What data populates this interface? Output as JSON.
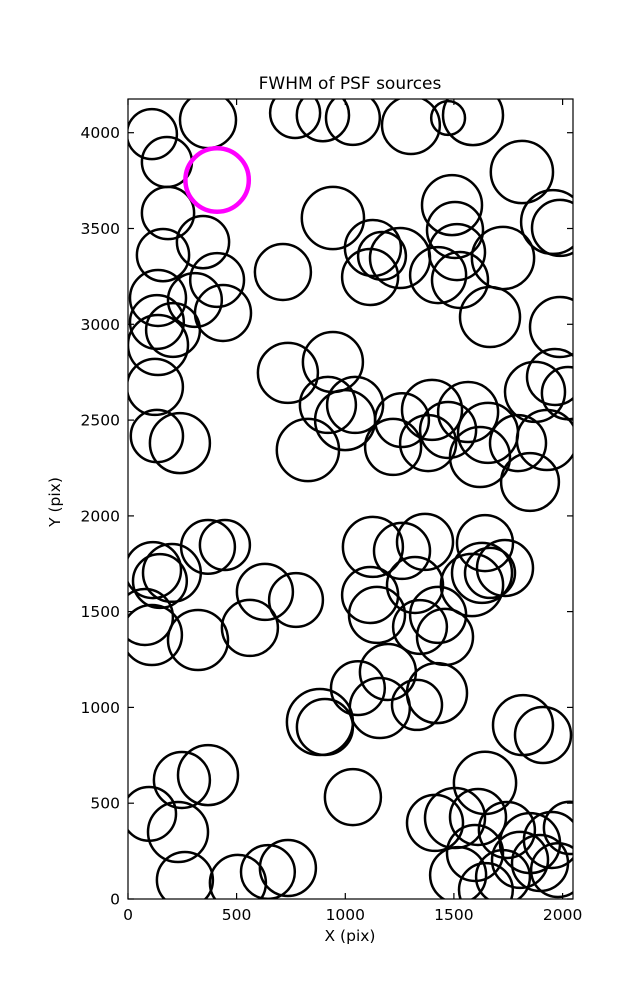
{
  "title": "FWHM of PSF sources",
  "chart_data": {
    "type": "scatter",
    "title": "FWHM of PSF sources",
    "xlabel": "X (pix)",
    "ylabel": "Y (pix)",
    "xlim": [
      0,
      2048
    ],
    "ylim": [
      0,
      4176
    ],
    "xticks": [
      0,
      500,
      1000,
      1500,
      2000
    ],
    "yticks": [
      0,
      500,
      1000,
      1500,
      2000,
      2500,
      3000,
      3500,
      4000
    ],
    "grid": false,
    "legend": "none",
    "marker": "open-circle",
    "colors": {
      "circle": "#000000",
      "highlight": "#ff00ff",
      "frame": "#000000"
    },
    "highlight_circle": [
      410,
      3753,
      146
    ],
    "circles": [
      [
        110,
        3993,
        115
      ],
      [
        368,
        4066,
        129
      ],
      [
        769,
        4103,
        115
      ],
      [
        897,
        4092,
        120
      ],
      [
        1035,
        4077,
        124
      ],
      [
        1302,
        4040,
        133
      ],
      [
        1473,
        4077,
        78
      ],
      [
        1588,
        4092,
        138
      ],
      [
        179,
        3847,
        115
      ],
      [
        1813,
        3795,
        143
      ],
      [
        184,
        3581,
        120
      ],
      [
        943,
        3555,
        143
      ],
      [
        1491,
        3622,
        138
      ],
      [
        1956,
        3534,
        147
      ],
      [
        1988,
        3503,
        129
      ],
      [
        161,
        3361,
        120
      ],
      [
        345,
        3429,
        120
      ],
      [
        410,
        3231,
        124
      ],
      [
        308,
        3127,
        124
      ],
      [
        138,
        3137,
        129
      ],
      [
        437,
        3059,
        129
      ],
      [
        1505,
        3492,
        129
      ],
      [
        1514,
        3377,
        129
      ],
      [
        1427,
        3257,
        129
      ],
      [
        1528,
        3231,
        129
      ],
      [
        1726,
        3346,
        143
      ],
      [
        1127,
        3398,
        129
      ],
      [
        1252,
        3346,
        138
      ],
      [
        1169,
        3357,
        110
      ],
      [
        1114,
        3247,
        129
      ],
      [
        713,
        3273,
        129
      ],
      [
        1666,
        3038,
        138
      ],
      [
        133,
        3012,
        124
      ],
      [
        207,
        2970,
        124
      ],
      [
        138,
        2892,
        138
      ],
      [
        124,
        2673,
        129
      ],
      [
        1988,
        2986,
        138
      ],
      [
        1965,
        2725,
        129
      ],
      [
        1873,
        2647,
        138
      ],
      [
        2025,
        2641,
        120
      ],
      [
        943,
        2803,
        138
      ],
      [
        736,
        2746,
        138
      ],
      [
        920,
        2579,
        129
      ],
      [
        1045,
        2579,
        129
      ],
      [
        999,
        2500,
        138
      ],
      [
        1261,
        2500,
        124
      ],
      [
        133,
        2417,
        120
      ],
      [
        239,
        2380,
        138
      ],
      [
        828,
        2344,
        143
      ],
      [
        1220,
        2360,
        129
      ],
      [
        1399,
        2553,
        138
      ],
      [
        1565,
        2542,
        138
      ],
      [
        1473,
        2448,
        129
      ],
      [
        1657,
        2433,
        138
      ],
      [
        1381,
        2380,
        129
      ],
      [
        1620,
        2307,
        138
      ],
      [
        1795,
        2380,
        129
      ],
      [
        1928,
        2396,
        138
      ],
      [
        1850,
        2177,
        133
      ],
      [
        368,
        1838,
        124
      ],
      [
        446,
        1848,
        115
      ],
      [
        115,
        1717,
        129
      ],
      [
        147,
        1660,
        124
      ],
      [
        202,
        1702,
        133
      ],
      [
        630,
        1603,
        129
      ],
      [
        773,
        1561,
        124
      ],
      [
        1127,
        1838,
        138
      ],
      [
        1261,
        1817,
        129
      ],
      [
        1367,
        1864,
        129
      ],
      [
        1114,
        1587,
        129
      ],
      [
        1321,
        1639,
        129
      ],
      [
        1643,
        1858,
        129
      ],
      [
        1629,
        1702,
        138
      ],
      [
        1666,
        1702,
        115
      ],
      [
        1735,
        1728,
        129
      ],
      [
        1583,
        1639,
        143
      ],
      [
        78,
        1472,
        129
      ],
      [
        110,
        1378,
        138
      ],
      [
        322,
        1352,
        138
      ],
      [
        561,
        1415,
        129
      ],
      [
        1146,
        1483,
        129
      ],
      [
        1344,
        1420,
        124
      ],
      [
        1427,
        1483,
        129
      ],
      [
        1459,
        1368,
        129
      ],
      [
        1196,
        1185,
        129
      ],
      [
        1058,
        1101,
        124
      ],
      [
        883,
        924,
        152
      ],
      [
        906,
        898,
        129
      ],
      [
        1159,
        997,
        138
      ],
      [
        1330,
        1013,
        115
      ],
      [
        1422,
        1075,
        138
      ],
      [
        248,
        621,
        129
      ],
      [
        368,
        647,
        138
      ],
      [
        1818,
        908,
        138
      ],
      [
        1910,
        856,
        129
      ],
      [
        1643,
        606,
        143
      ],
      [
        1035,
        532,
        129
      ],
      [
        97,
        444,
        124
      ],
      [
        230,
        350,
        138
      ],
      [
        262,
        99,
        129
      ],
      [
        506,
        84,
        129
      ],
      [
        644,
        141,
        124
      ],
      [
        736,
        162,
        129
      ],
      [
        1505,
        423,
        138
      ],
      [
        1611,
        428,
        129
      ],
      [
        1413,
        397,
        129
      ],
      [
        1597,
        240,
        129
      ],
      [
        1519,
        125,
        129
      ],
      [
        1744,
        360,
        129
      ],
      [
        1850,
        292,
        138
      ],
      [
        1951,
        308,
        129
      ],
      [
        1804,
        204,
        129
      ],
      [
        1896,
        188,
        129
      ],
      [
        1726,
        115,
        124
      ],
      [
        1979,
        151,
        124
      ],
      [
        1647,
        47,
        124
      ],
      [
        2034,
        371,
        120
      ]
    ]
  }
}
